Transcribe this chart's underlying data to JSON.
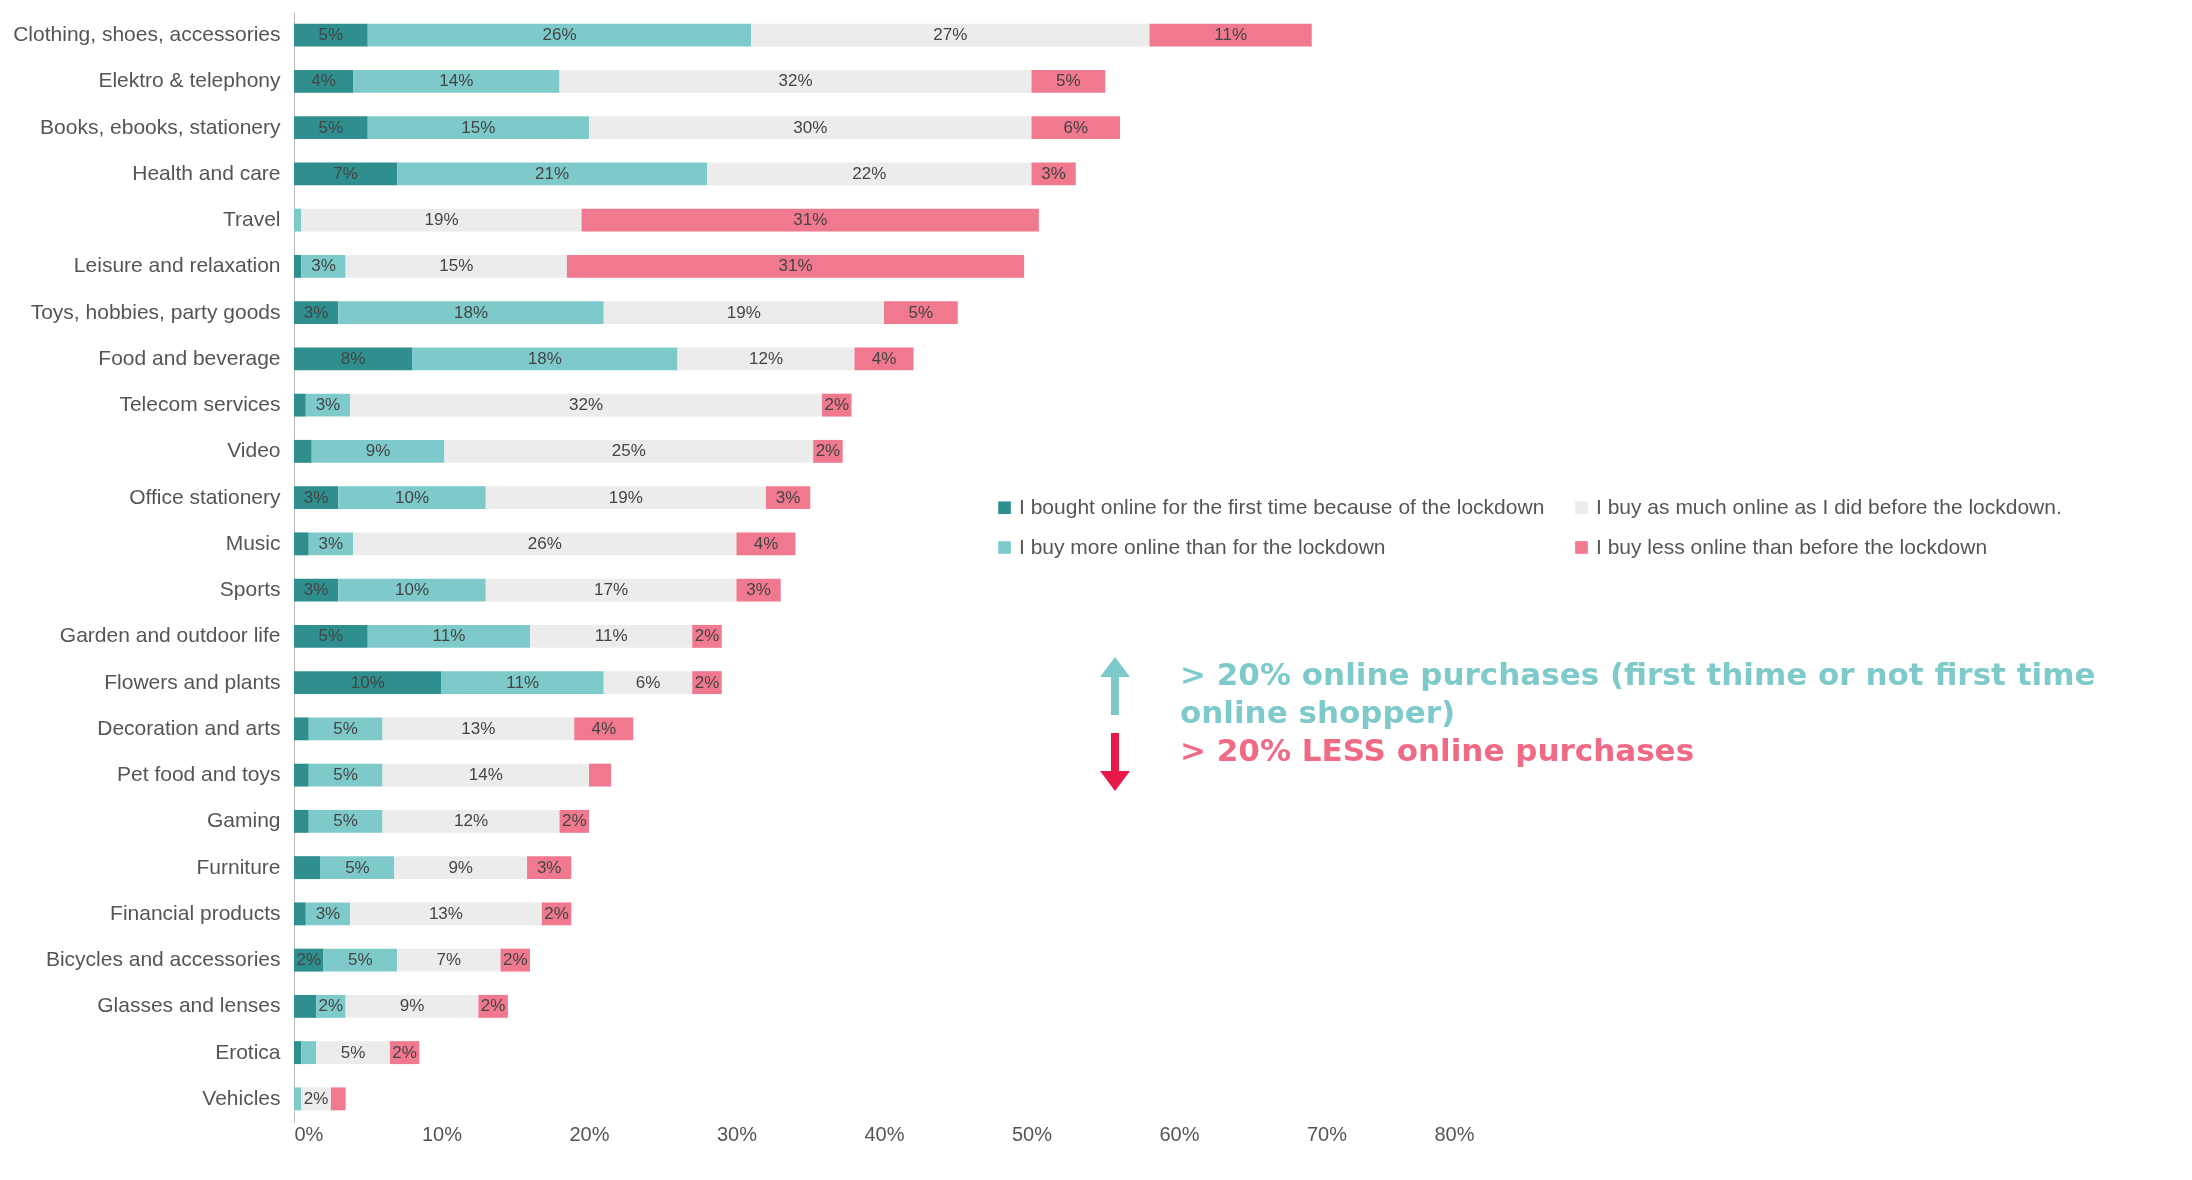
{
  "chart_data": {
    "type": "bar",
    "orientation": "horizontal",
    "stacked": true,
    "legend": "right",
    "grid": false,
    "categories": [
      "Clothing, shoes, accessories",
      "Elektro & telephony",
      "Books, ebooks, stationery",
      "Health and care",
      "Travel",
      "Leisure and relaxation",
      "Toys, hobbies, party goods",
      "Food and beverage",
      "Telecom services",
      "Video",
      "Office stationery",
      "Music",
      "Sports",
      "Garden and outdoor life",
      "Flowers and plants",
      "Decoration and arts",
      "Pet food and toys",
      "Gaming",
      "Furniture",
      "Financial products",
      "Bicycles and accessories",
      "Glasses and lenses",
      "Erotica",
      "Vehicles"
    ],
    "series": [
      {
        "name": "I bought online for the first time because of the lockdown",
        "color": "#2f8f8f",
        "values": [
          5,
          4,
          5,
          7,
          null,
          0.5,
          3,
          8,
          0.8,
          1.2,
          3,
          1,
          3,
          5,
          10,
          1,
          1,
          1,
          1.8,
          0.8,
          2,
          1.5,
          0.5,
          null
        ],
        "value_labels": [
          "5%",
          "4%",
          "5%",
          "7%",
          null,
          null,
          "3%",
          "8%",
          null,
          null,
          "3%",
          null,
          "3%",
          "5%",
          "10%",
          null,
          null,
          null,
          null,
          null,
          "2%",
          null,
          null,
          null
        ]
      },
      {
        "name": "I buy more online than for the lockdown",
        "color": "#7ecaca",
        "values": [
          26,
          14,
          15,
          21,
          0.5,
          3,
          18,
          18,
          3,
          9,
          10,
          3,
          10,
          11,
          11,
          5,
          5,
          5,
          5,
          3,
          5,
          2,
          1,
          0.5
        ],
        "value_labels": [
          "26%",
          "14%",
          "15%",
          "21%",
          null,
          "3%",
          "18%",
          "18%",
          "3%",
          "9%",
          "10%",
          "3%",
          "10%",
          "11%",
          "11%",
          "5%",
          "5%",
          "5%",
          "5%",
          "3%",
          "5%",
          "2%",
          null,
          null
        ]
      },
      {
        "name": "I buy as much online as I did before the lockdown.",
        "color": "#ececec",
        "values": [
          27,
          32,
          30,
          22,
          19,
          15,
          19,
          12,
          32,
          25,
          19,
          26,
          17,
          11,
          6,
          13,
          14,
          12,
          9,
          13,
          7,
          9,
          5,
          2
        ],
        "value_labels": [
          "27%",
          "32%",
          "30%",
          "22%",
          "19%",
          "15%",
          "19%",
          "12%",
          "32%",
          "25%",
          "19%",
          "26%",
          "17%",
          "11%",
          "6%",
          "13%",
          "14%",
          "12%",
          "9%",
          "13%",
          "7%",
          "9%",
          "5%",
          "2%"
        ]
      },
      {
        "name": "I buy less online than before the lockdown",
        "color": "#f0788f",
        "values": [
          11,
          5,
          6,
          3,
          31,
          31,
          5,
          4,
          2,
          2,
          3,
          4,
          3,
          2,
          2,
          4,
          1.5,
          2,
          3,
          2,
          2,
          2,
          2,
          1
        ],
        "value_labels": [
          "11%",
          "5%",
          "6%",
          "3%",
          "31%",
          "31%",
          "5%",
          "4%",
          "2%",
          "2%",
          "3%",
          "4%",
          "3%",
          "2%",
          "2%",
          "4%",
          null,
          "2%",
          "3%",
          "2%",
          "2%",
          "2%",
          "2%",
          null
        ]
      }
    ],
    "xlim": [
      0,
      80
    ],
    "xticks": [
      {
        "value": 0,
        "label": "0%"
      },
      {
        "value": 10,
        "label": "10%"
      },
      {
        "value": 20,
        "label": "20%"
      },
      {
        "value": 30,
        "label": "30%"
      },
      {
        "value": 40,
        "label": "40%"
      },
      {
        "value": 50,
        "label": "50%"
      },
      {
        "value": 60,
        "label": "60%"
      },
      {
        "value": 70,
        "label": "70%"
      },
      {
        "value": 80,
        "label": "80%"
      }
    ],
    "annotations": [
      "> 20% online purchases (first thime or not first time online shopper)",
      "> 20% LESS online purchases"
    ]
  }
}
